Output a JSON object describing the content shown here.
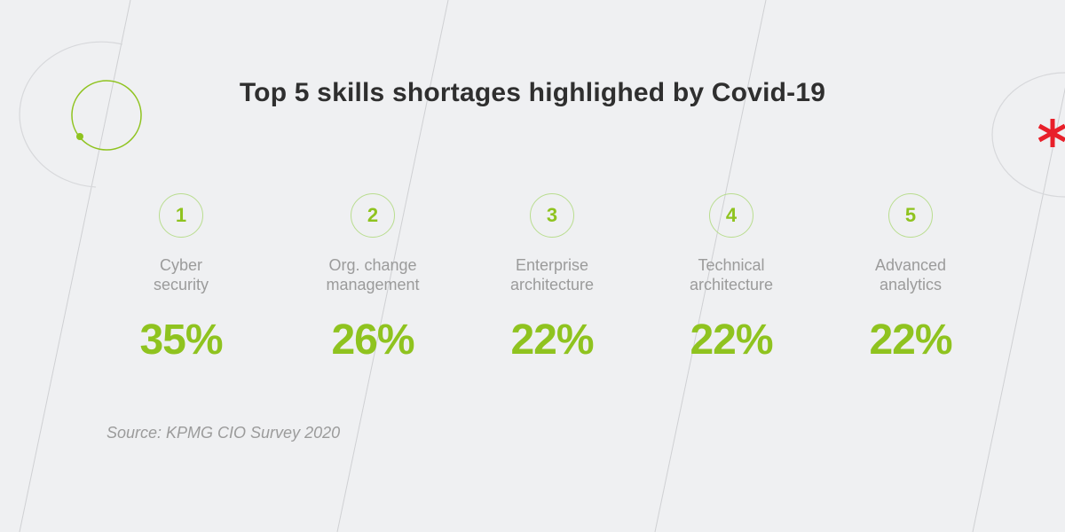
{
  "chart_data": {
    "type": "table",
    "title": "Top 5 skills shortages highlighed by Covid-19",
    "items": [
      {
        "rank": "1",
        "label_lines": [
          "Cyber",
          "security"
        ],
        "value": 35,
        "value_label": "35%"
      },
      {
        "rank": "2",
        "label_lines": [
          "Org. change",
          "management"
        ],
        "value": 26,
        "value_label": "26%"
      },
      {
        "rank": "3",
        "label_lines": [
          "Enterprise",
          "architecture"
        ],
        "value": 22,
        "value_label": "22%"
      },
      {
        "rank": "4",
        "label_lines": [
          "Technical",
          "architecture"
        ],
        "value": 22,
        "value_label": "22%"
      },
      {
        "rank": "5",
        "label_lines": [
          "Advanced",
          "analytics"
        ],
        "value": 22,
        "value_label": "22%"
      }
    ],
    "source": "Source: KPMG CIO Survey 2020"
  },
  "colors": {
    "accent": "#8fc31f",
    "title": "#2f2f2f",
    "label": "#9b9b9b",
    "background": "#eff0f2",
    "brand_mark": "#e8202a"
  }
}
